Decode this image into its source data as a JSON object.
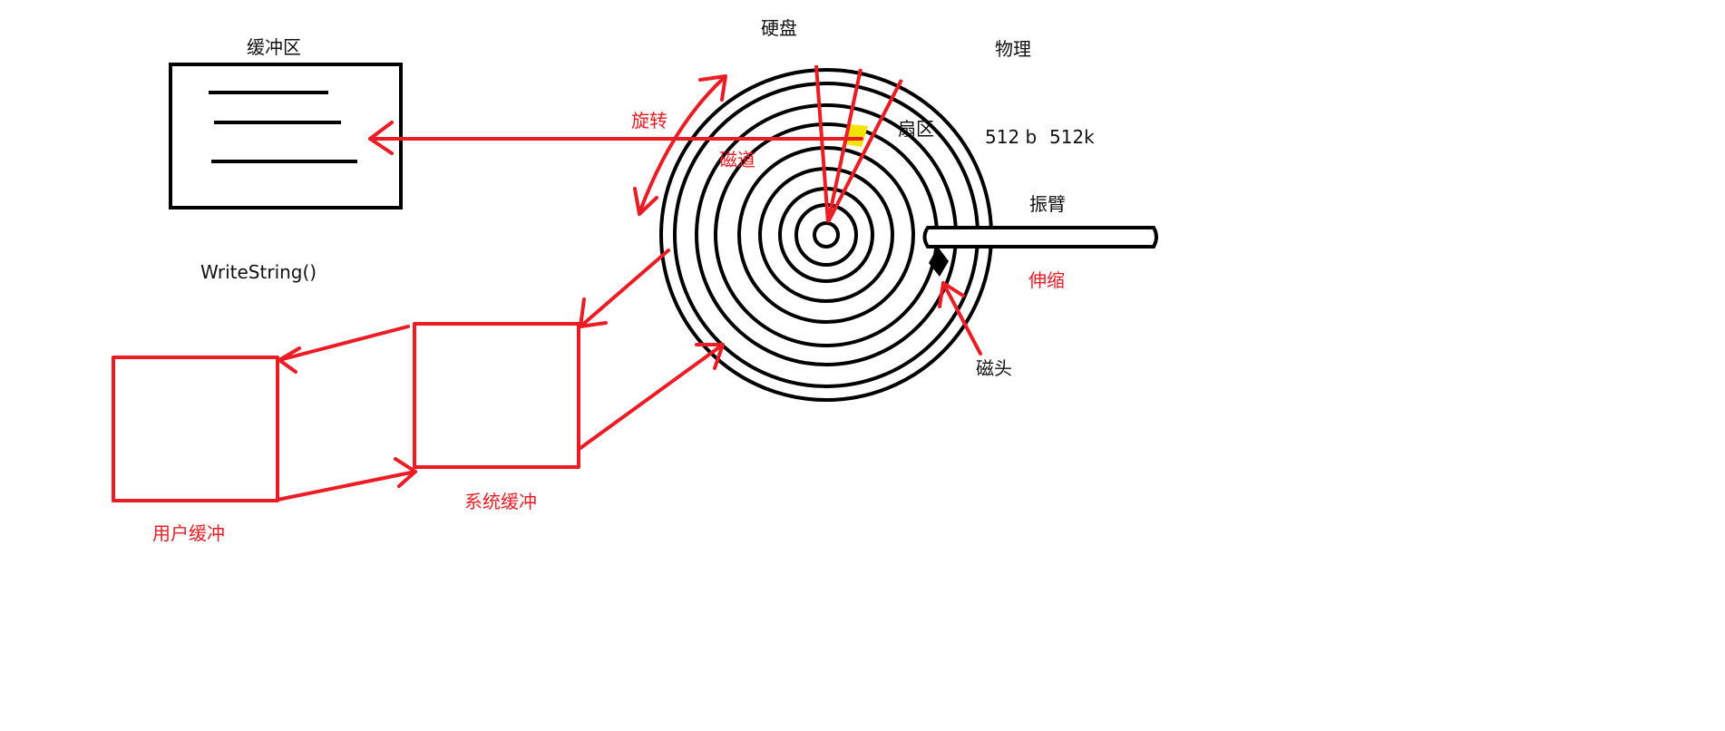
{
  "labels": {
    "buffer": "缓冲区",
    "disk": "硬盘",
    "physical": "物理",
    "rotate": "旋转",
    "sector": "扇区",
    "track": "磁道",
    "size_b": "512 b",
    "size_k": "512k",
    "arm": "振臂",
    "extend": "伸缩",
    "head": "磁头",
    "write_fn": "WriteString()",
    "system_buffer": "系统缓冲",
    "user_buffer": "用户缓冲"
  },
  "colors": {
    "ink": "#000000",
    "red": "#ec1c24",
    "sector_fill": "#f5e400"
  }
}
